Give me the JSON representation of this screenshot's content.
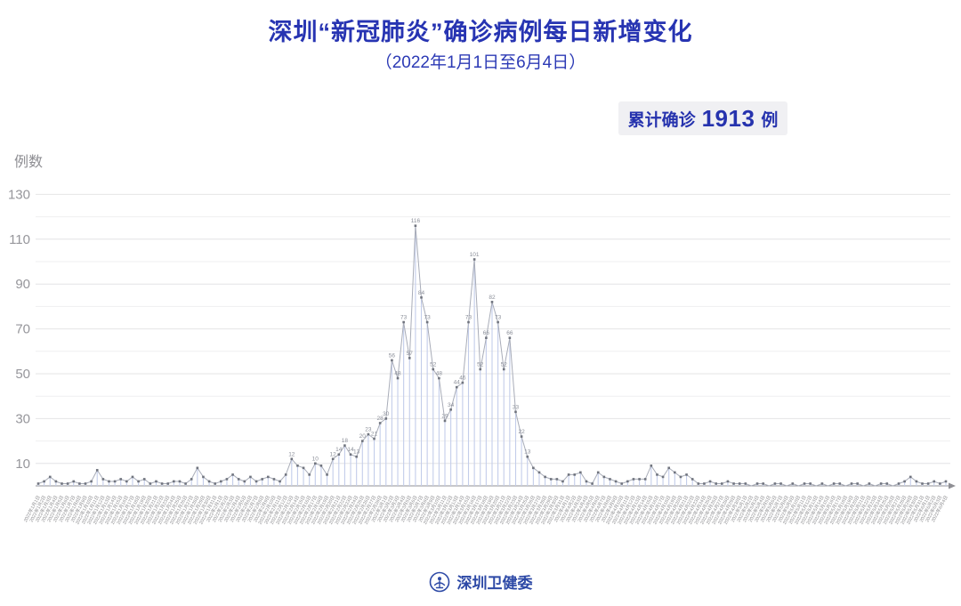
{
  "header": {
    "title": "深圳“新冠肺炎”确诊病例每日新增变化",
    "subtitle": "（2022年1月1日至6月4日）"
  },
  "badge": {
    "label": "累计确诊",
    "value": "1913",
    "unit": "例"
  },
  "footer": {
    "org_name": "深圳卫健委",
    "logo_icon": "shenzhen-health-commission-emblem"
  },
  "colors": {
    "title_blue": "#2734b2",
    "badge_bg": "#f0f0f3",
    "badge_text": "#2633ae",
    "grid_major": "#e4e4e6",
    "grid_minor": "#efeff1",
    "axis_line": "#8f8f94",
    "tick_text": "#96969b",
    "stem_blue": "#c3cdea",
    "trend_line": "#a8acb8",
    "marker": "#70747e",
    "point_label": "#8b8f99",
    "footer_blue": "#2d49a6"
  },
  "chart_data": {
    "type": "line",
    "subtype": "stem-and-line daily series with drop lines and square markers",
    "title": "深圳“新冠肺炎”确诊病例每日新增变化",
    "y_axis_title": "例数",
    "xlabel": "",
    "ylabel": "例数",
    "x_start_date": "2022/1/1",
    "x_end_date": "2022/6/4",
    "x_tick_label_format": "2022年M月D日",
    "num_days": 155,
    "y_ticks": [
      10,
      30,
      50,
      70,
      90,
      110,
      130
    ],
    "ylim": [
      0,
      130
    ],
    "grid": true,
    "legend": "none",
    "x_axis_arrow": true,
    "cumulative_total": 1913,
    "values": [
      1,
      2,
      4,
      2,
      1,
      1,
      2,
      1,
      1,
      2,
      7,
      3,
      2,
      2,
      3,
      2,
      4,
      2,
      3,
      1,
      2,
      1,
      1,
      2,
      2,
      1,
      3,
      8,
      4,
      2,
      1,
      2,
      3,
      5,
      3,
      2,
      4,
      2,
      3,
      4,
      3,
      2,
      5,
      12,
      9,
      8,
      5,
      10,
      9,
      5,
      12,
      14,
      18,
      14,
      13,
      20,
      23,
      21,
      28,
      30,
      56,
      48,
      73,
      57,
      116,
      84,
      73,
      52,
      48,
      29,
      34,
      44,
      46,
      73,
      101,
      52,
      66,
      82,
      73,
      52,
      66,
      33,
      22,
      13,
      8,
      6,
      4,
      3,
      3,
      2,
      5,
      5,
      6,
      2,
      1,
      6,
      4,
      3,
      2,
      1,
      2,
      3,
      3,
      3,
      9,
      5,
      4,
      8,
      6,
      4,
      5,
      3,
      1,
      1,
      2,
      1,
      1,
      2,
      1,
      1,
      1,
      0,
      1,
      1,
      0,
      1,
      1,
      0,
      1,
      0,
      1,
      1,
      0,
      1,
      0,
      1,
      1,
      0,
      1,
      1,
      0,
      1,
      0,
      1,
      1,
      0,
      1,
      2,
      4,
      2,
      1,
      1,
      2,
      1,
      2
    ]
  }
}
